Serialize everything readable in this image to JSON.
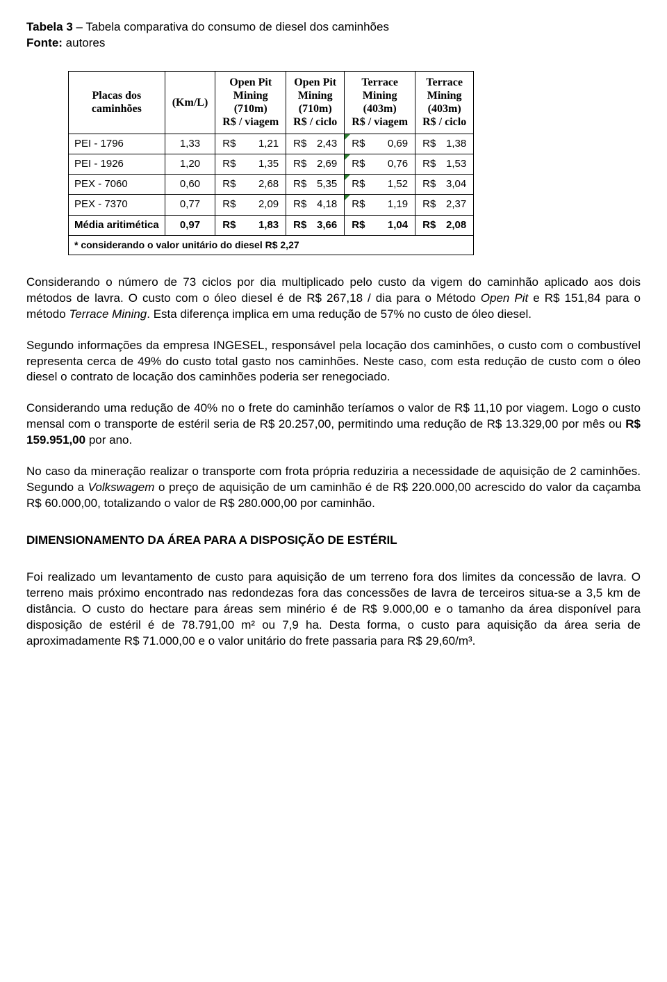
{
  "header": {
    "table_label": "Tabela 3",
    "table_title_rest": " – Tabela comparativa do consumo de diesel dos caminhões",
    "source_label": "Fonte:",
    "source_rest": " autores"
  },
  "table": {
    "columns": [
      "Placas dos\ncaminhões",
      "(Km/L)",
      "Open Pit\nMining\n(710m)\nR$ / viagem",
      "Open Pit\nMining\n(710m)\nR$ / ciclo",
      "Terrace\nMining\n(403m)\nR$ / viagem",
      "Terrace\nMining\n(403m)\nR$ / ciclo"
    ],
    "rows": [
      {
        "label": "PEI - 1796",
        "km": "1,33",
        "c1": "1,21",
        "c2": "2,43",
        "c3": "0,69",
        "c4": "1,38",
        "mark_c3": true,
        "bold": false
      },
      {
        "label": "PEI - 1926",
        "km": "1,20",
        "c1": "1,35",
        "c2": "2,69",
        "c3": "0,76",
        "c4": "1,53",
        "mark_c3": true,
        "bold": false
      },
      {
        "label": "PEX - 7060",
        "km": "0,60",
        "c1": "2,68",
        "c2": "5,35",
        "c3": "1,52",
        "c4": "3,04",
        "mark_c3": true,
        "bold": false
      },
      {
        "label": "PEX - 7370",
        "km": "0,77",
        "c1": "2,09",
        "c2": "4,18",
        "c3": "1,19",
        "c4": "2,37",
        "mark_c3": true,
        "bold": false
      },
      {
        "label": "Média aritimética",
        "km": "0,97",
        "c1": "1,83",
        "c2": "3,66",
        "c3": "1,04",
        "c4": "2,08",
        "mark_c3": false,
        "bold": true
      }
    ],
    "currency_prefix": "R$",
    "footnote": "* considerando o valor unitário do diesel R$ 2,27"
  },
  "paragraphs": {
    "p1_a": "Considerando o número de 73 ciclos por dia multiplicado pelo custo da vigem do caminhão aplicado aos dois métodos de lavra. O custo com o óleo diesel é de R$ 267,18 / dia para o Método ",
    "p1_i1": "Open Pit",
    "p1_b": " e R$ 151,84 para o método ",
    "p1_i2": "Terrace Mining",
    "p1_c": ". Esta diferença implica em uma redução de 57% no custo de óleo diesel.",
    "p2": "Segundo informações da empresa INGESEL, responsável pela locação dos caminhões, o custo com o combustível representa cerca de 49% do custo total gasto nos caminhões. Neste caso, com esta redução de custo com o óleo diesel o contrato de locação dos caminhões poderia ser renegociado.",
    "p3_a": "Considerando uma redução de 40% no o frete do caminhão teríamos o valor de R$ 11,10 por viagem. Logo o custo mensal com o transporte de estéril seria de R$ 20.257,00, permitindo uma redução de R$ 13.329,00 por mês ou ",
    "p3_b": "R$ 159.951,00",
    "p3_c": " por ano.",
    "p4_a": "No caso da mineração realizar o transporte com frota própria reduziria a necessidade de aquisição de 2 caminhões. Segundo a ",
    "p4_i1": "Volkswagem",
    "p4_b": " o preço de aquisição de um caminhão é de R$ 220.000,00 acrescido do valor da caçamba R$ 60.000,00, totalizando o valor de R$ 280.000,00 por caminhão.",
    "section": "DIMENSIONAMENTO DA ÁREA PARA A DISPOSIÇÃO DE ESTÉRIL",
    "p5": "Foi realizado um levantamento de custo para aquisição de um terreno fora dos limites da concessão de lavra. O terreno mais próximo encontrado nas redondezas fora das concessões de lavra de terceiros situa-se a 3,5 km de distância. O custo do hectare para áreas sem minério é de R$ 9.000,00 e o tamanho da área disponível para disposição de estéril é de 78.791,00 m² ou 7,9 ha. Desta forma, o custo para aquisição da área seria de aproximadamente R$ 71.000,00 e o valor unitário do frete passaria para R$ 29,60/m³."
  }
}
